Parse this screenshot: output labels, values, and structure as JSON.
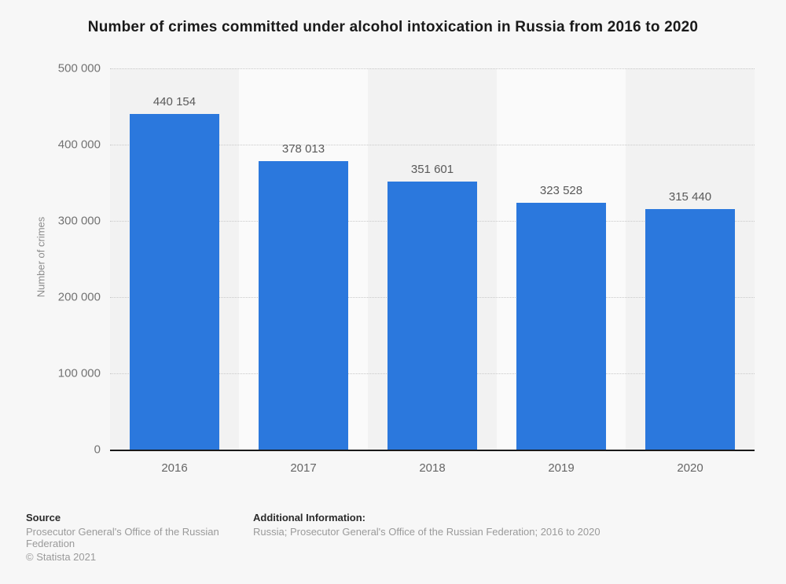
{
  "chart_data": {
    "type": "bar",
    "title": "Number of crimes committed under alcohol intoxication in Russia from 2016 to 2020",
    "xlabel": "",
    "ylabel": "Number of crimes",
    "categories": [
      "2016",
      "2017",
      "2018",
      "2019",
      "2020"
    ],
    "values": [
      440154,
      378013,
      351601,
      323528,
      315440
    ],
    "value_labels": [
      "440 154",
      "378 013",
      "351 601",
      "323 528",
      "315 440"
    ],
    "ylim": [
      0,
      500000
    ],
    "ytick_values": [
      0,
      100000,
      200000,
      300000,
      400000,
      500000
    ],
    "ytick_labels": [
      "0",
      "100 000",
      "200 000",
      "300 000",
      "400 000",
      "500 000"
    ],
    "grid": "horizontal-dotted",
    "legend": "none",
    "bar_color": "#2b78dd",
    "band_colors": [
      "#f2f2f2",
      "#fafafa"
    ],
    "axis_line_color": "#1a1a1a"
  },
  "footer": {
    "source_heading": "Source",
    "source_text": "Prosecutor General's Office of the Russian Federation",
    "copyright": "© Statista 2021",
    "additional_heading": "Additional Information:",
    "additional_text": "Russia; Prosecutor General's Office of the Russian Federation; 2016 to 2020"
  }
}
